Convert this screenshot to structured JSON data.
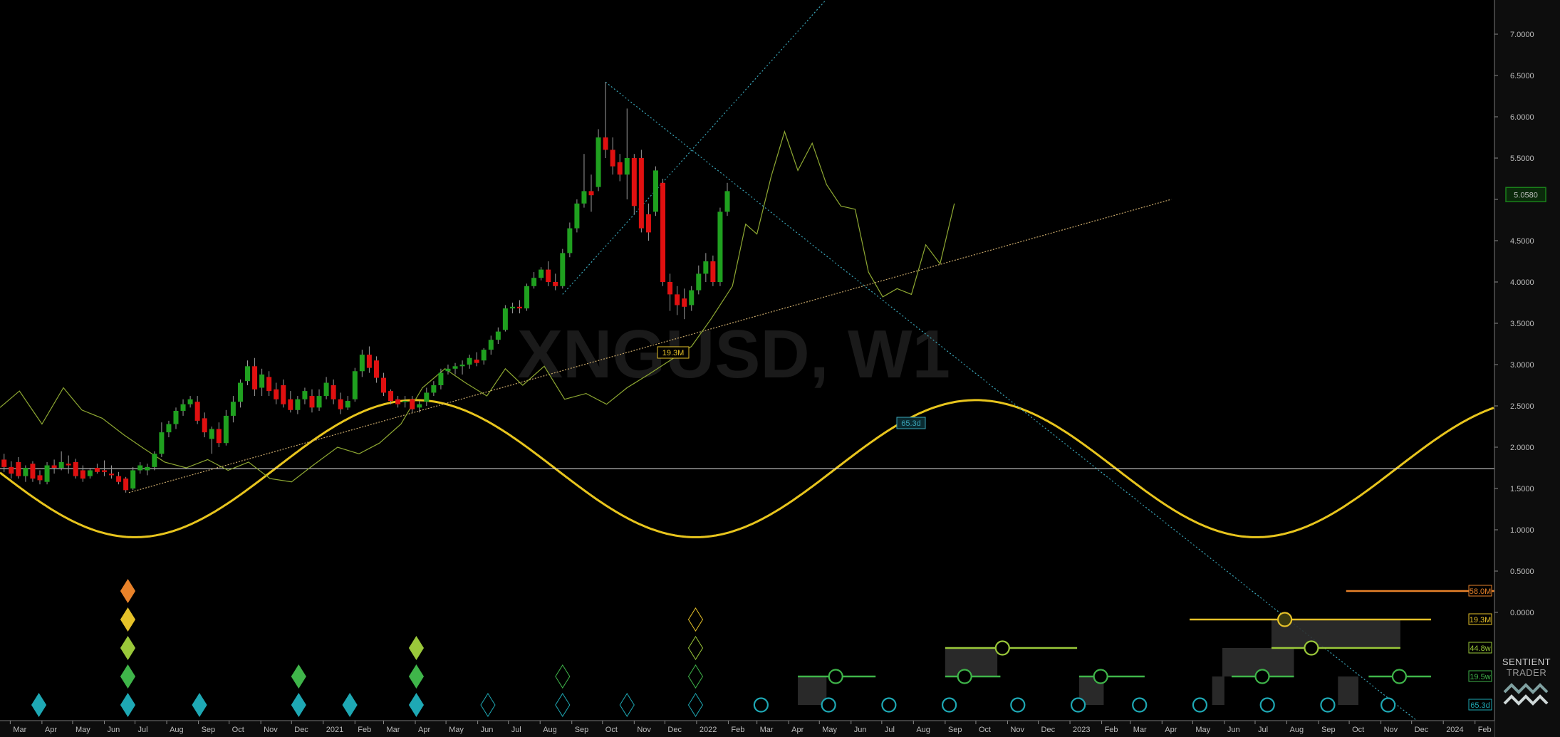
{
  "watermark": "XNGUSD, W1",
  "logo": {
    "line1": "SENTIENT",
    "line2": "TRADER"
  },
  "price_marker": {
    "label": "5.0580",
    "value": 5.058,
    "color": "#1a7f1a"
  },
  "inline_labels": [
    {
      "text": "19.3M",
      "color": "#e6c229"
    },
    {
      "text": "65.3d",
      "color": "#3aa5b8"
    }
  ],
  "colors": {
    "up": "#1fa01f",
    "down": "#e01010",
    "sine": "#e8c51d",
    "trend": "#c8a86a",
    "projection": "#8ea832",
    "cycle_teal": "#1ea8b4"
  },
  "chart_data": {
    "type": "candlestick",
    "title": "XNGUSD, W1",
    "y_ticks": [
      "7.0000",
      "6.5000",
      "6.0000",
      "5.5000",
      "5.0000",
      "4.5000",
      "4.0000",
      "3.5000",
      "3.0000",
      "2.5000",
      "2.0000",
      "1.5000",
      "1.0000",
      "0.5000",
      "0.0000"
    ],
    "ylim": [
      -1.25,
      7.4
    ],
    "x_ticks": [
      "Mar",
      "Apr",
      "May",
      "Jun",
      "Jul",
      "Aug",
      "Sep",
      "Oct",
      "Nov",
      "Dec",
      "2021",
      "Feb",
      "Mar",
      "Apr",
      "May",
      "Jun",
      "Jul",
      "Aug",
      "Sep",
      "Oct",
      "Nov",
      "Dec",
      "2022",
      "Feb",
      "Mar",
      "Apr",
      "May",
      "Jun",
      "Jul",
      "Aug",
      "Sep",
      "Oct",
      "Nov",
      "Dec",
      "2023",
      "Feb",
      "Mar",
      "Apr",
      "May",
      "Jun",
      "Jul",
      "Aug",
      "Sep",
      "Oct",
      "Nov",
      "Dec",
      "2024",
      "Feb"
    ],
    "x_range": [
      "2020-02-20",
      "2024-02-20"
    ],
    "candles": [
      [
        "2020-02-24",
        1.85,
        1.92,
        1.7,
        1.76
      ],
      [
        "2020-03-02",
        1.76,
        1.83,
        1.62,
        1.68
      ],
      [
        "2020-03-09",
        1.82,
        1.88,
        1.62,
        1.65
      ],
      [
        "2020-03-16",
        1.65,
        1.78,
        1.58,
        1.75
      ],
      [
        "2020-03-23",
        1.8,
        1.83,
        1.58,
        1.62
      ],
      [
        "2020-03-30",
        1.66,
        1.72,
        1.55,
        1.6
      ],
      [
        "2020-04-06",
        1.58,
        1.82,
        1.55,
        1.78
      ],
      [
        "2020-04-13",
        1.78,
        1.85,
        1.68,
        1.75
      ],
      [
        "2020-04-20",
        1.75,
        1.95,
        1.72,
        1.82
      ],
      [
        "2020-04-27",
        1.8,
        1.9,
        1.68,
        1.78
      ],
      [
        "2020-05-04",
        1.82,
        1.86,
        1.62,
        1.65
      ],
      [
        "2020-05-11",
        1.72,
        1.78,
        1.58,
        1.62
      ],
      [
        "2020-05-18",
        1.65,
        1.75,
        1.62,
        1.72
      ],
      [
        "2020-05-25",
        1.75,
        1.8,
        1.68,
        1.7
      ],
      [
        "2020-06-01",
        1.72,
        1.84,
        1.65,
        1.7
      ],
      [
        "2020-06-08",
        1.68,
        1.78,
        1.62,
        1.66
      ],
      [
        "2020-06-15",
        1.65,
        1.7,
        1.55,
        1.58
      ],
      [
        "2020-06-22",
        1.62,
        1.64,
        1.45,
        1.48
      ],
      [
        "2020-06-29",
        1.5,
        1.76,
        1.48,
        1.72
      ],
      [
        "2020-07-06",
        1.72,
        1.82,
        1.68,
        1.78
      ],
      [
        "2020-07-13",
        1.72,
        1.8,
        1.66,
        1.76
      ],
      [
        "2020-07-20",
        1.76,
        1.95,
        1.72,
        1.92
      ],
      [
        "2020-07-27",
        1.92,
        2.3,
        1.88,
        2.18
      ],
      [
        "2020-08-03",
        2.18,
        2.32,
        2.12,
        2.28
      ],
      [
        "2020-08-10",
        2.28,
        2.48,
        2.22,
        2.44
      ],
      [
        "2020-08-17",
        2.44,
        2.58,
        2.38,
        2.52
      ],
      [
        "2020-08-24",
        2.52,
        2.62,
        2.48,
        2.58
      ],
      [
        "2020-08-31",
        2.55,
        2.62,
        2.28,
        2.32
      ],
      [
        "2020-09-07",
        2.35,
        2.42,
        2.12,
        2.18
      ],
      [
        "2020-09-14",
        2.1,
        2.25,
        1.92,
        2.22
      ],
      [
        "2020-09-21",
        2.22,
        2.3,
        2.0,
        2.05
      ],
      [
        "2020-09-28",
        2.05,
        2.45,
        2.02,
        2.38
      ],
      [
        "2020-10-05",
        2.38,
        2.62,
        2.3,
        2.55
      ],
      [
        "2020-10-12",
        2.55,
        2.82,
        2.48,
        2.78
      ],
      [
        "2020-10-19",
        2.8,
        3.05,
        2.75,
        2.98
      ],
      [
        "2020-10-26",
        2.98,
        3.08,
        2.62,
        2.7
      ],
      [
        "2020-11-02",
        2.72,
        2.95,
        2.62,
        2.88
      ],
      [
        "2020-11-09",
        2.85,
        2.92,
        2.62,
        2.68
      ],
      [
        "2020-11-16",
        2.7,
        2.78,
        2.52,
        2.58
      ],
      [
        "2020-11-23",
        2.75,
        2.82,
        2.48,
        2.52
      ],
      [
        "2020-11-30",
        2.58,
        2.68,
        2.42,
        2.45
      ],
      [
        "2020-12-07",
        2.45,
        2.62,
        2.4,
        2.58
      ],
      [
        "2020-12-14",
        2.58,
        2.72,
        2.52,
        2.68
      ],
      [
        "2020-12-21",
        2.62,
        2.7,
        2.42,
        2.48
      ],
      [
        "2020-12-28",
        2.48,
        2.7,
        2.44,
        2.62
      ],
      [
        "2021-01-04",
        2.62,
        2.85,
        2.58,
        2.78
      ],
      [
        "2021-01-11",
        2.75,
        2.82,
        2.52,
        2.58
      ],
      [
        "2021-01-18",
        2.58,
        2.66,
        2.4,
        2.46
      ],
      [
        "2021-01-25",
        2.48,
        2.62,
        2.45,
        2.56
      ],
      [
        "2021-02-01",
        2.58,
        2.96,
        2.55,
        2.92
      ],
      [
        "2021-02-08",
        2.92,
        3.18,
        2.85,
        3.12
      ],
      [
        "2021-02-15",
        3.12,
        3.22,
        2.9,
        2.96
      ],
      [
        "2021-02-22",
        3.05,
        3.1,
        2.78,
        2.84
      ],
      [
        "2021-03-01",
        2.84,
        2.9,
        2.62,
        2.66
      ],
      [
        "2021-03-08",
        2.68,
        2.7,
        2.52,
        2.56
      ],
      [
        "2021-03-15",
        2.58,
        2.62,
        2.48,
        2.52
      ],
      [
        "2021-03-22",
        2.55,
        2.62,
        2.48,
        2.56
      ],
      [
        "2021-03-29",
        2.58,
        2.62,
        2.42,
        2.46
      ],
      [
        "2021-04-05",
        2.48,
        2.56,
        2.42,
        2.52
      ],
      [
        "2021-04-12",
        2.55,
        2.72,
        2.5,
        2.66
      ],
      [
        "2021-04-19",
        2.66,
        2.8,
        2.62,
        2.75
      ],
      [
        "2021-04-26",
        2.75,
        2.95,
        2.7,
        2.9
      ],
      [
        "2021-05-03",
        2.92,
        3.0,
        2.88,
        2.95
      ],
      [
        "2021-05-10",
        2.95,
        3.02,
        2.88,
        2.98
      ],
      [
        "2021-05-17",
        2.98,
        3.05,
        2.88,
        3.0
      ],
      [
        "2021-05-24",
        3.0,
        3.12,
        2.95,
        3.08
      ],
      [
        "2021-05-31",
        3.06,
        3.15,
        2.98,
        3.02
      ],
      [
        "2021-06-07",
        3.05,
        3.2,
        3.0,
        3.18
      ],
      [
        "2021-06-14",
        3.18,
        3.35,
        3.12,
        3.3
      ],
      [
        "2021-06-21",
        3.3,
        3.45,
        3.25,
        3.4
      ],
      [
        "2021-06-28",
        3.42,
        3.72,
        3.4,
        3.68
      ],
      [
        "2021-07-05",
        3.68,
        3.75,
        3.62,
        3.7
      ],
      [
        "2021-07-12",
        3.7,
        3.78,
        3.62,
        3.68
      ],
      [
        "2021-07-19",
        3.68,
        3.98,
        3.65,
        3.95
      ],
      [
        "2021-07-26",
        3.95,
        4.12,
        3.92,
        4.05
      ],
      [
        "2021-08-02",
        4.05,
        4.18,
        4.02,
        4.15
      ],
      [
        "2021-08-09",
        4.15,
        4.25,
        3.95,
        4.0
      ],
      [
        "2021-08-16",
        4.0,
        4.1,
        3.9,
        3.95
      ],
      [
        "2021-08-23",
        3.95,
        4.4,
        3.92,
        4.35
      ],
      [
        "2021-08-30",
        4.35,
        4.72,
        4.3,
        4.65
      ],
      [
        "2021-09-06",
        4.65,
        5.0,
        4.6,
        4.95
      ],
      [
        "2021-09-13",
        4.95,
        5.55,
        4.9,
        5.1
      ],
      [
        "2021-09-20",
        5.1,
        5.3,
        4.85,
        5.05
      ],
      [
        "2021-09-27",
        5.15,
        5.85,
        5.1,
        5.75
      ],
      [
        "2021-10-04",
        5.75,
        6.42,
        5.5,
        5.6
      ],
      [
        "2021-10-11",
        5.6,
        5.75,
        5.3,
        5.4
      ],
      [
        "2021-10-18",
        5.45,
        5.55,
        5.22,
        5.3
      ],
      [
        "2021-10-25",
        5.3,
        6.1,
        5.0,
        5.5
      ],
      [
        "2021-11-01",
        5.5,
        5.55,
        4.82,
        4.92
      ],
      [
        "2021-11-08",
        5.5,
        5.6,
        4.6,
        4.65
      ],
      [
        "2021-11-15",
        4.82,
        4.95,
        4.5,
        4.6
      ],
      [
        "2021-11-22",
        4.85,
        5.4,
        4.8,
        5.35
      ],
      [
        "2021-11-29",
        5.2,
        5.25,
        3.95,
        4.0
      ],
      [
        "2021-12-06",
        4.0,
        4.1,
        3.65,
        3.85
      ],
      [
        "2021-12-13",
        3.85,
        3.95,
        3.6,
        3.72
      ],
      [
        "2021-12-20",
        3.8,
        3.92,
        3.55,
        3.7
      ],
      [
        "2021-12-27",
        3.72,
        3.95,
        3.65,
        3.9
      ],
      [
        "2022-01-03",
        3.9,
        4.2,
        3.85,
        4.1
      ],
      [
        "2022-01-10",
        4.1,
        4.35,
        4.0,
        4.25
      ],
      [
        "2022-01-17",
        4.25,
        4.32,
        3.95,
        4.0
      ],
      [
        "2022-01-24",
        4.0,
        4.9,
        3.95,
        4.85
      ],
      [
        "2022-01-31",
        4.85,
        5.2,
        4.8,
        5.1
      ]
    ],
    "sine_cycle": {
      "label": "19.3M",
      "amplitude": 0.83,
      "center": 1.74,
      "trough": "2020-07-01",
      "peak": "2021-04-01",
      "trough2": "2021-12-31",
      "peak2": "2022-09-29"
    },
    "projection_line": [
      [
        "2020-02-20",
        2.48
      ],
      [
        "2020-03-10",
        2.68
      ],
      [
        "2020-04-01",
        2.28
      ],
      [
        "2020-04-22",
        2.72
      ],
      [
        "2020-05-10",
        2.45
      ],
      [
        "2020-05-30",
        2.35
      ],
      [
        "2020-06-20",
        2.15
      ],
      [
        "2020-07-10",
        1.98
      ],
      [
        "2020-07-30",
        1.82
      ],
      [
        "2020-08-20",
        1.75
      ],
      [
        "2020-09-10",
        1.85
      ],
      [
        "2020-09-30",
        1.72
      ],
      [
        "2020-10-20",
        1.82
      ],
      [
        "2020-11-10",
        1.62
      ],
      [
        "2020-12-01",
        1.58
      ],
      [
        "2020-12-22",
        1.78
      ],
      [
        "2021-01-15",
        2.0
      ],
      [
        "2021-02-05",
        1.92
      ],
      [
        "2021-02-25",
        2.05
      ],
      [
        "2021-03-18",
        2.28
      ],
      [
        "2021-04-08",
        2.72
      ],
      [
        "2021-04-30",
        2.95
      ],
      [
        "2021-05-20",
        2.78
      ],
      [
        "2021-06-10",
        2.62
      ],
      [
        "2021-06-28",
        2.95
      ],
      [
        "2021-07-15",
        2.75
      ],
      [
        "2021-08-05",
        2.98
      ],
      [
        "2021-08-25",
        2.58
      ],
      [
        "2021-09-15",
        2.65
      ],
      [
        "2021-10-05",
        2.52
      ],
      [
        "2021-10-25",
        2.72
      ],
      [
        "2021-11-15",
        2.88
      ],
      [
        "2021-12-06",
        3.05
      ],
      [
        "2021-12-27",
        3.22
      ],
      [
        "2022-01-15",
        3.55
      ],
      [
        "2022-02-05",
        3.95
      ],
      [
        "2022-02-18",
        4.7
      ],
      [
        "2022-03-01",
        4.58
      ],
      [
        "2022-03-15",
        5.28
      ],
      [
        "2022-03-28",
        5.82
      ],
      [
        "2022-04-10",
        5.35
      ],
      [
        "2022-04-24",
        5.68
      ],
      [
        "2022-05-08",
        5.18
      ],
      [
        "2022-05-22",
        4.92
      ],
      [
        "2022-06-05",
        4.88
      ],
      [
        "2022-06-18",
        4.12
      ],
      [
        "2022-07-02",
        3.82
      ],
      [
        "2022-07-16",
        3.92
      ],
      [
        "2022-07-30",
        3.85
      ],
      [
        "2022-08-13",
        4.45
      ],
      [
        "2022-08-27",
        4.22
      ],
      [
        "2022-09-10",
        4.95
      ]
    ],
    "trendlines": [
      {
        "from": [
          "2020-06-25",
          1.45
        ],
        "to": [
          "2023-04-10",
          5.0
        ],
        "color": "#c8a86a",
        "dash": "2,2"
      },
      {
        "from": [
          "2021-10-04",
          6.42
        ],
        "to": [
          "2023-12-05",
          -1.3
        ],
        "color": "#3aa5b8",
        "dash": "2,3"
      },
      {
        "from": [
          "2021-08-23",
          3.85
        ],
        "to": [
          "2022-05-10",
          7.45
        ],
        "color": "#3aa5b8",
        "dash": "2,3"
      }
    ],
    "horizontal_line": 1.74,
    "cycle_levels": [
      {
        "label": "58.0M",
        "color": "#e8822a"
      },
      {
        "label": "19.3M",
        "color": "#e6c229"
      },
      {
        "label": "44.8w",
        "color": "#9ac83a"
      },
      {
        "label": "19.5w",
        "color": "#3fb54a"
      },
      {
        "label": "65.3d",
        "color": "#1ea8b4"
      }
    ],
    "diamonds": [
      {
        "date": "2020-03-29",
        "levels": [
          "65.3d"
        ],
        "filled": true
      },
      {
        "date": "2020-06-24",
        "levels": [
          "65.3d",
          "19.5w",
          "44.8w",
          "19.3M",
          "58.0M"
        ],
        "filled": true
      },
      {
        "date": "2020-09-02",
        "levels": [
          "65.3d"
        ],
        "filled": true
      },
      {
        "date": "2020-12-08",
        "levels": [
          "65.3d",
          "19.5w"
        ],
        "filled": true
      },
      {
        "date": "2021-01-27",
        "levels": [
          "65.3d"
        ],
        "filled": true
      },
      {
        "date": "2021-04-02",
        "levels": [
          "65.3d",
          "19.5w",
          "44.8w"
        ],
        "filled": true
      },
      {
        "date": "2021-06-11",
        "levels": [
          "65.3d"
        ],
        "filled": false
      },
      {
        "date": "2021-08-23",
        "levels": [
          "65.3d",
          "19.5w"
        ],
        "filled": false
      },
      {
        "date": "2021-10-25",
        "levels": [
          "65.3d"
        ],
        "filled": false
      },
      {
        "date": "2021-12-31",
        "levels": [
          "65.3d",
          "19.5w",
          "44.8w",
          "19.3M"
        ],
        "filled": false
      }
    ],
    "cycle_circles": [
      {
        "date": "2022-03-05",
        "level": "65.3d"
      },
      {
        "date": "2022-05-10",
        "level": "65.3d"
      },
      {
        "date": "2022-07-08",
        "level": "65.3d"
      },
      {
        "date": "2022-09-05",
        "level": "65.3d"
      },
      {
        "date": "2022-11-11",
        "level": "65.3d"
      },
      {
        "date": "2023-01-09",
        "level": "65.3d"
      },
      {
        "date": "2023-03-10",
        "level": "65.3d"
      },
      {
        "date": "2023-05-08",
        "level": "65.3d"
      },
      {
        "date": "2023-07-13",
        "level": "65.3d"
      },
      {
        "date": "2023-09-10",
        "level": "65.3d"
      },
      {
        "date": "2023-11-08",
        "level": "65.3d"
      },
      {
        "date": "2022-05-17",
        "level": "19.5w",
        "range": [
          "2022-04-10",
          "2022-06-25"
        ]
      },
      {
        "date": "2022-09-20",
        "level": "19.5w",
        "range": [
          "2022-09-01",
          "2022-10-25"
        ]
      },
      {
        "date": "2023-01-31",
        "level": "19.5w",
        "range": [
          "2023-01-10",
          "2023-03-15"
        ]
      },
      {
        "date": "2023-07-08",
        "level": "19.5w",
        "range": [
          "2023-06-08",
          "2023-08-08"
        ]
      },
      {
        "date": "2023-11-19",
        "level": "19.5w",
        "range": [
          "2023-10-20",
          "2023-12-20"
        ]
      },
      {
        "date": "2022-10-27",
        "level": "44.8w",
        "range": [
          "2022-09-01",
          "2023-01-08"
        ]
      },
      {
        "date": "2023-08-25",
        "level": "44.8w",
        "range": [
          "2023-07-17",
          "2023-11-20"
        ]
      },
      {
        "date": "2023-07-30",
        "level": "19.3M",
        "range": [
          "2023-04-28",
          "2023-12-20"
        ]
      }
    ],
    "shaded_regions": [
      {
        "from": "2022-04-10",
        "to": "2022-05-08",
        "level": "65.3d"
      },
      {
        "from": "2022-09-01",
        "to": "2022-10-22",
        "level": "19.5w"
      },
      {
        "from": "2023-01-10",
        "to": "2023-02-03",
        "level": "65.3d"
      },
      {
        "from": "2023-05-20",
        "to": "2023-06-01",
        "level": "65.3d"
      },
      {
        "from": "2023-05-30",
        "to": "2023-08-08",
        "level": "19.5w"
      },
      {
        "from": "2023-07-17",
        "to": "2023-11-20",
        "level": "44.8w"
      },
      {
        "from": "2023-09-20",
        "to": "2023-10-10",
        "level": "65.3d"
      }
    ],
    "orange_line": {
      "from": "2023-09-28",
      "to": "2024-02-20"
    }
  }
}
